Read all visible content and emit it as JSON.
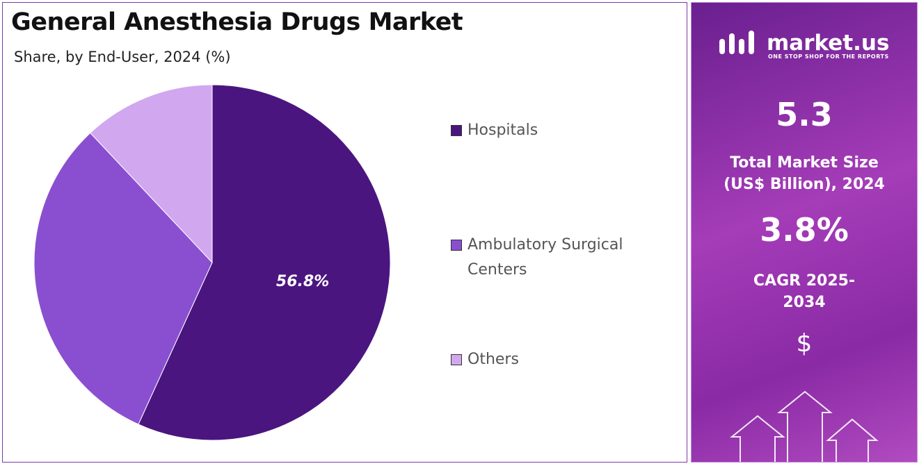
{
  "chart_data": {
    "type": "pie",
    "title": "General Anesthesia Drugs Market",
    "subtitle": "Share, by End-User, 2024 (%)",
    "categories": [
      "Hospitals",
      "Ambulatory Surgical Centers",
      "Others"
    ],
    "values": [
      56.8,
      31.2,
      12.0
    ],
    "value_labels": [
      "56.8%",
      null,
      null
    ],
    "colors": [
      "#4b1580",
      "#8a4fd0",
      "#d1a7ef"
    ]
  },
  "sidebar": {
    "logo": "market.us",
    "tagline": "ONE STOP SHOP FOR THE REPORTS",
    "market_size": "5.3",
    "market_size_label": "Total Market Size (US$ Billion), 2024",
    "cagr": "3.8%",
    "cagr_label": "CAGR 2025-2034",
    "currency": "$"
  }
}
